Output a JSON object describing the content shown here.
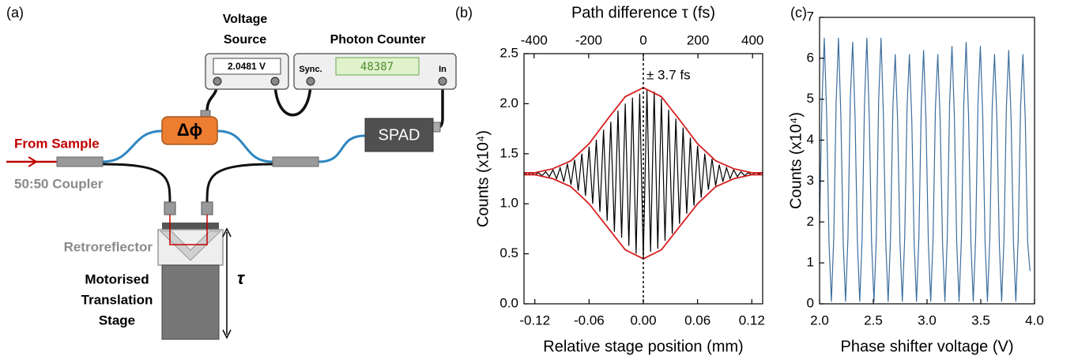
{
  "diagram": {
    "panel_label": "(a)",
    "voltage_source": [
      "Voltage",
      "Source"
    ],
    "voltage_display": "2.0481 V",
    "photon_counter": "Photon Counter",
    "counter_display": "48387",
    "sync": "Sync.",
    "input": "In",
    "phase_shifter": "Δϕ",
    "detector": "SPAD",
    "from_sample": "From Sample",
    "coupler": "50:50 Coupler",
    "retroreflector": "Retroreflector",
    "stage": [
      "Motorised",
      "Translation",
      "Stage"
    ],
    "delay": "τ"
  },
  "chart_data": [
    {
      "type": "line",
      "panel_label": "(b)",
      "xlabel": "Relative stage position (mm)",
      "ylabel": "Counts (x10⁴)",
      "x2label": "Path difference τ (fs)",
      "xlim": [
        -0.132,
        0.132
      ],
      "xticks": [
        -0.12,
        -0.06,
        {
          "value": 0,
          "label": "0.00"
        },
        0.06,
        0.12
      ],
      "x2lim": [
        -437,
        437
      ],
      "x2ticks": [
        -400,
        -200,
        0,
        200,
        400
      ],
      "ylim": [
        0,
        2.5
      ],
      "yticks": [
        {
          "value": 0,
          "label": "0.0"
        },
        0.5,
        {
          "value": 1,
          "label": "1.0"
        },
        1.5,
        {
          "value": 2,
          "label": "2.0"
        },
        2.5
      ],
      "vline": 0,
      "annotation": "± 3.7 fs",
      "series": [
        {
          "color": "#000000",
          "x": [
            -0.132,
            -0.128,
            -0.124,
            -0.12,
            -0.116,
            -0.112,
            -0.108,
            -0.104,
            -0.1,
            -0.096,
            -0.092,
            -0.088,
            -0.084,
            -0.08,
            -0.076,
            -0.072,
            -0.068,
            -0.064,
            -0.06,
            -0.056,
            -0.052,
            -0.048,
            -0.044,
            -0.04,
            -0.036,
            -0.032,
            -0.028,
            -0.024,
            -0.02,
            -0.016,
            -0.012,
            -0.008,
            -0.004,
            0,
            0.004,
            0.008,
            0.012,
            0.016,
            0.02,
            0.024,
            0.028,
            0.032,
            0.036,
            0.04,
            0.044,
            0.048,
            0.052,
            0.056,
            0.06,
            0.064,
            0.068,
            0.072,
            0.076,
            0.08,
            0.084,
            0.088,
            0.092,
            0.096,
            0.1,
            0.104,
            0.108,
            0.112,
            0.116,
            0.12,
            0.124,
            0.128,
            0.132
          ],
          "values": [
            1.31,
            1.29,
            1.31,
            1.29,
            1.31,
            1.28,
            1.32,
            1.27,
            1.34,
            1.25,
            1.36,
            1.22,
            1.4,
            1.19,
            1.44,
            1.13,
            1.5,
            1.08,
            1.57,
            1.0,
            1.64,
            0.92,
            1.74,
            0.83,
            1.82,
            0.72,
            1.93,
            0.66,
            2.0,
            0.58,
            2.06,
            0.5,
            2.1,
            0.46,
            2.14,
            0.52,
            2.12,
            0.55,
            2.05,
            0.63,
            1.94,
            0.7,
            1.85,
            0.8,
            1.76,
            0.9,
            1.66,
            0.98,
            1.58,
            1.06,
            1.5,
            1.14,
            1.45,
            1.18,
            1.39,
            1.22,
            1.36,
            1.25,
            1.34,
            1.27,
            1.32,
            1.28,
            1.31,
            1.29,
            1.31,
            1.3,
            1.31
          ]
        },
        {
          "color": "#d62020",
          "x": [
            -0.132,
            -0.12,
            -0.1,
            -0.08,
            -0.06,
            -0.04,
            -0.02,
            0,
            0.02,
            0.04,
            0.06,
            0.08,
            0.1,
            0.12,
            0.132
          ],
          "values": [
            1.31,
            1.31,
            1.35,
            1.43,
            1.6,
            1.84,
            2.07,
            2.16,
            2.07,
            1.84,
            1.6,
            1.43,
            1.35,
            1.31,
            1.31
          ]
        },
        {
          "color": "#d62020",
          "x": [
            -0.132,
            -0.12,
            -0.1,
            -0.08,
            -0.06,
            -0.04,
            -0.02,
            0,
            0.02,
            0.04,
            0.06,
            0.08,
            0.1,
            0.12,
            0.132
          ],
          "values": [
            1.29,
            1.29,
            1.25,
            1.17,
            1.0,
            0.77,
            0.54,
            0.45,
            0.54,
            0.77,
            1.0,
            1.17,
            1.25,
            1.29,
            1.29
          ]
        }
      ]
    },
    {
      "type": "line",
      "panel_label": "(c)",
      "xlabel": "Phase shifter voltage (V)",
      "ylabel": "Counts (x10⁴)",
      "xlim": [
        2.0,
        4.0
      ],
      "xticks": [
        {
          "value": 2,
          "label": "2.0"
        },
        2.5,
        {
          "value": 3,
          "label": "3.0"
        },
        3.5,
        {
          "value": 4,
          "label": "4.0"
        }
      ],
      "ylim": [
        0,
        7
      ],
      "yticks": [
        0,
        1,
        2,
        3,
        4,
        5,
        6,
        7
      ],
      "series": [
        {
          "color": "#3d6e9e",
          "x": [
            2,
            2.022,
            2.044,
            2.066,
            2.088,
            2.11,
            2.132,
            2.154,
            2.176,
            2.198,
            2.22,
            2.242,
            2.264,
            2.286,
            2.308,
            2.33,
            2.352,
            2.374,
            2.396,
            2.418,
            2.44,
            2.462,
            2.484,
            2.506,
            2.528,
            2.55,
            2.572,
            2.594,
            2.616,
            2.638,
            2.66,
            2.682,
            2.704,
            2.726,
            2.748,
            2.77,
            2.792,
            2.814,
            2.836,
            2.858,
            2.88,
            2.902,
            2.924,
            2.946,
            2.968,
            2.99,
            3.012,
            3.034,
            3.056,
            3.078,
            3.1,
            3.122,
            3.144,
            3.166,
            3.188,
            3.21,
            3.232,
            3.254,
            3.276,
            3.298,
            3.32,
            3.342,
            3.364,
            3.386,
            3.408,
            3.43,
            3.452,
            3.474,
            3.496,
            3.518,
            3.54,
            3.562,
            3.584,
            3.606,
            3.628,
            3.65,
            3.672,
            3.694,
            3.716,
            3.738,
            3.76,
            3.782,
            3.804,
            3.826,
            3.848,
            3.87,
            3.892,
            3.914,
            3.936,
            3.958
          ],
          "values": [
            1.9,
            4.9,
            6.5,
            4.6,
            1.5,
            0.05,
            1.6,
            4.9,
            6.5,
            4.6,
            1.5,
            0.05,
            1.6,
            5.0,
            6.4,
            4.6,
            1.5,
            0.05,
            1.6,
            4.9,
            6.5,
            4.6,
            1.5,
            0.05,
            1.6,
            5.0,
            6.5,
            4.6,
            1.5,
            0.05,
            1.6,
            4.8,
            6.1,
            4.5,
            1.5,
            0.05,
            1.6,
            4.8,
            6.1,
            4.5,
            1.5,
            0.05,
            1.6,
            4.8,
            6.2,
            4.5,
            1.5,
            0.05,
            1.6,
            4.8,
            6.1,
            4.5,
            1.5,
            0.05,
            1.6,
            4.9,
            6.3,
            4.6,
            1.5,
            0.05,
            1.6,
            4.9,
            6.4,
            4.6,
            1.5,
            0.05,
            1.6,
            4.9,
            6.3,
            4.6,
            1.5,
            0.05,
            1.6,
            4.8,
            6.1,
            4.5,
            1.5,
            0.05,
            1.6,
            4.8,
            6.2,
            4.5,
            1.5,
            0.05,
            1.6,
            4.8,
            6.1,
            4.5,
            1.5,
            0.8
          ]
        }
      ]
    }
  ]
}
